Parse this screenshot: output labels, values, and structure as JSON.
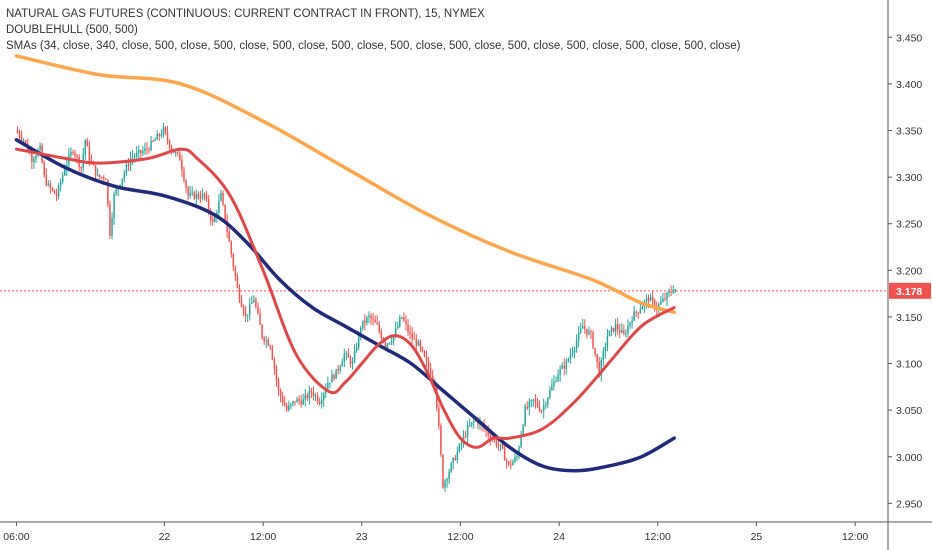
{
  "chart_data": {
    "type": "candlestick",
    "title": "NATURAL GAS FUTURES (CONTINUOUS: CURRENT CONTRACT IN FRONT), 15, NYMEX",
    "indicators": [
      "DOUBLEHULL (500, 500)",
      "SMAs (34, close, 340, close, 500, close, 500, close, 500, close, 500, close, 500, close, 500, close, 500, close, 500, close, 500, close, 500, close)"
    ],
    "x_tick_labels": [
      "06:00",
      "22",
      "12:00",
      "23",
      "12:00",
      "24",
      "12:00",
      "25",
      "12:00"
    ],
    "y_ticks": [
      2.95,
      3.0,
      3.05,
      3.1,
      3.15,
      3.2,
      3.25,
      3.3,
      3.35,
      3.4,
      3.45
    ],
    "y_tick_labels": [
      "2.950",
      "3.000",
      "3.050",
      "3.100",
      "3.150",
      "3.200",
      "3.250",
      "3.300",
      "3.350",
      "3.400",
      "3.450"
    ],
    "ylim": [
      2.93,
      3.49
    ],
    "current_price": 3.178,
    "current_price_label": "3.178",
    "colors": {
      "up": "#26a69a",
      "down": "#ef5350",
      "sma_orange": "#ffa64d",
      "hull_red": "#e04848",
      "sma_navy": "#1f2a7a",
      "price_line": "#ef5350"
    },
    "time_span_hours": [
      0,
      96
    ],
    "tick_times": [
      0,
      18,
      30,
      42,
      54,
      66,
      78,
      90,
      102
    ],
    "anchors": [
      [
        0,
        3.35
      ],
      [
        1,
        3.34
      ],
      [
        2,
        3.32
      ],
      [
        3,
        3.33
      ],
      [
        3.5,
        3.3
      ],
      [
        4,
        3.29
      ],
      [
        5,
        3.28
      ],
      [
        6,
        3.31
      ],
      [
        7,
        3.33
      ],
      [
        8,
        3.31
      ],
      [
        8.5,
        3.34
      ],
      [
        9,
        3.32
      ],
      [
        10,
        3.3
      ],
      [
        11,
        3.3
      ],
      [
        11.5,
        3.24
      ],
      [
        12,
        3.28
      ],
      [
        14,
        3.32
      ],
      [
        16,
        3.33
      ],
      [
        18,
        3.35
      ],
      [
        19,
        3.33
      ],
      [
        20,
        3.32
      ],
      [
        21,
        3.28
      ],
      [
        23,
        3.28
      ],
      [
        24,
        3.25
      ],
      [
        25,
        3.28
      ],
      [
        26,
        3.23
      ],
      [
        27,
        3.18
      ],
      [
        28,
        3.15
      ],
      [
        29,
        3.17
      ],
      [
        30,
        3.13
      ],
      [
        31,
        3.12
      ],
      [
        32,
        3.07
      ],
      [
        33,
        3.05
      ],
      [
        34,
        3.06
      ],
      [
        35,
        3.06
      ],
      [
        36,
        3.07
      ],
      [
        37,
        3.06
      ],
      [
        38,
        3.08
      ],
      [
        39,
        3.09
      ],
      [
        40,
        3.11
      ],
      [
        41,
        3.1
      ],
      [
        42,
        3.14
      ],
      [
        43,
        3.15
      ],
      [
        44,
        3.14
      ],
      [
        45,
        3.12
      ],
      [
        46,
        3.13
      ],
      [
        47,
        3.15
      ],
      [
        48,
        3.13
      ],
      [
        49,
        3.12
      ],
      [
        50,
        3.1
      ],
      [
        51,
        3.08
      ],
      [
        51.5,
        3.03
      ],
      [
        52,
        2.97
      ],
      [
        53,
        2.99
      ],
      [
        54,
        3.01
      ],
      [
        55,
        3.03
      ],
      [
        56,
        3.04
      ],
      [
        57,
        3.03
      ],
      [
        58,
        3.02
      ],
      [
        59,
        3.01
      ],
      [
        60,
        2.99
      ],
      [
        61,
        3.0
      ],
      [
        62,
        3.05
      ],
      [
        63,
        3.06
      ],
      [
        64,
        3.05
      ],
      [
        65,
        3.07
      ],
      [
        66,
        3.09
      ],
      [
        67,
        3.1
      ],
      [
        68,
        3.12
      ],
      [
        69,
        3.14
      ],
      [
        70,
        3.13
      ],
      [
        71,
        3.09
      ],
      [
        72,
        3.13
      ],
      [
        73,
        3.14
      ],
      [
        74,
        3.13
      ],
      [
        75,
        3.15
      ],
      [
        76,
        3.16
      ],
      [
        77,
        3.17
      ],
      [
        78,
        3.16
      ],
      [
        79,
        3.17
      ],
      [
        80,
        3.18
      ]
    ],
    "sma_orange": [
      [
        0,
        3.43
      ],
      [
        10,
        3.41
      ],
      [
        20,
        3.4
      ],
      [
        30,
        3.36
      ],
      [
        40,
        3.31
      ],
      [
        50,
        3.26
      ],
      [
        60,
        3.22
      ],
      [
        70,
        3.19
      ],
      [
        76,
        3.165
      ],
      [
        80,
        3.155
      ]
    ],
    "hull_red": [
      [
        0,
        3.33
      ],
      [
        6,
        3.32
      ],
      [
        10,
        3.315
      ],
      [
        16,
        3.32
      ],
      [
        20,
        3.33
      ],
      [
        22,
        3.32
      ],
      [
        26,
        3.28
      ],
      [
        30,
        3.2
      ],
      [
        34,
        3.11
      ],
      [
        38,
        3.07
      ],
      [
        40,
        3.08
      ],
      [
        42,
        3.1
      ],
      [
        44,
        3.12
      ],
      [
        46,
        3.13
      ],
      [
        48,
        3.12
      ],
      [
        50,
        3.09
      ],
      [
        52,
        3.05
      ],
      [
        54,
        3.02
      ],
      [
        56,
        3.01
      ],
      [
        58,
        3.02
      ],
      [
        60,
        3.02
      ],
      [
        64,
        3.03
      ],
      [
        68,
        3.06
      ],
      [
        72,
        3.1
      ],
      [
        76,
        3.14
      ],
      [
        80,
        3.16
      ]
    ],
    "sma_navy": [
      [
        0,
        3.34
      ],
      [
        6,
        3.31
      ],
      [
        12,
        3.29
      ],
      [
        18,
        3.28
      ],
      [
        24,
        3.26
      ],
      [
        28,
        3.23
      ],
      [
        32,
        3.19
      ],
      [
        36,
        3.16
      ],
      [
        40,
        3.14
      ],
      [
        44,
        3.12
      ],
      [
        48,
        3.1
      ],
      [
        52,
        3.07
      ],
      [
        56,
        3.04
      ],
      [
        60,
        3.01
      ],
      [
        64,
        2.99
      ],
      [
        68,
        2.985
      ],
      [
        72,
        2.99
      ],
      [
        76,
        3.0
      ],
      [
        80,
        3.02
      ]
    ]
  }
}
